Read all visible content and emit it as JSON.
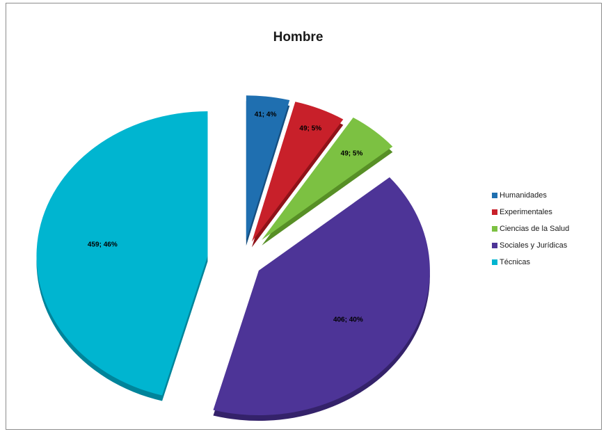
{
  "chart_data": {
    "type": "pie",
    "title": "Hombre",
    "slices": [
      {
        "name": "Humanidades",
        "value": 41,
        "percent": "4%",
        "label": "41; 4%",
        "color": "#1f6fb0",
        "side": "#164f80"
      },
      {
        "name": "Experimentales",
        "value": 49,
        "percent": "5%",
        "label": "49; 5%",
        "color": "#c8202a",
        "side": "#8f1218"
      },
      {
        "name": "Ciencias de la Salud",
        "value": 49,
        "percent": "5%",
        "label": "49; 5%",
        "color": "#7cc142",
        "side": "#578f26"
      },
      {
        "name": "Sociales y Jurídicas",
        "value": 406,
        "percent": "40%",
        "label": "406; 40%",
        "color": "#4d3497",
        "side": "#34226a"
      },
      {
        "name": "Técnicas",
        "value": 459,
        "percent": "46%",
        "label": "459; 46%",
        "color": "#00b5d0",
        "side": "#00849a"
      }
    ],
    "legend_position": "right",
    "exploded": true,
    "style": "3d"
  }
}
